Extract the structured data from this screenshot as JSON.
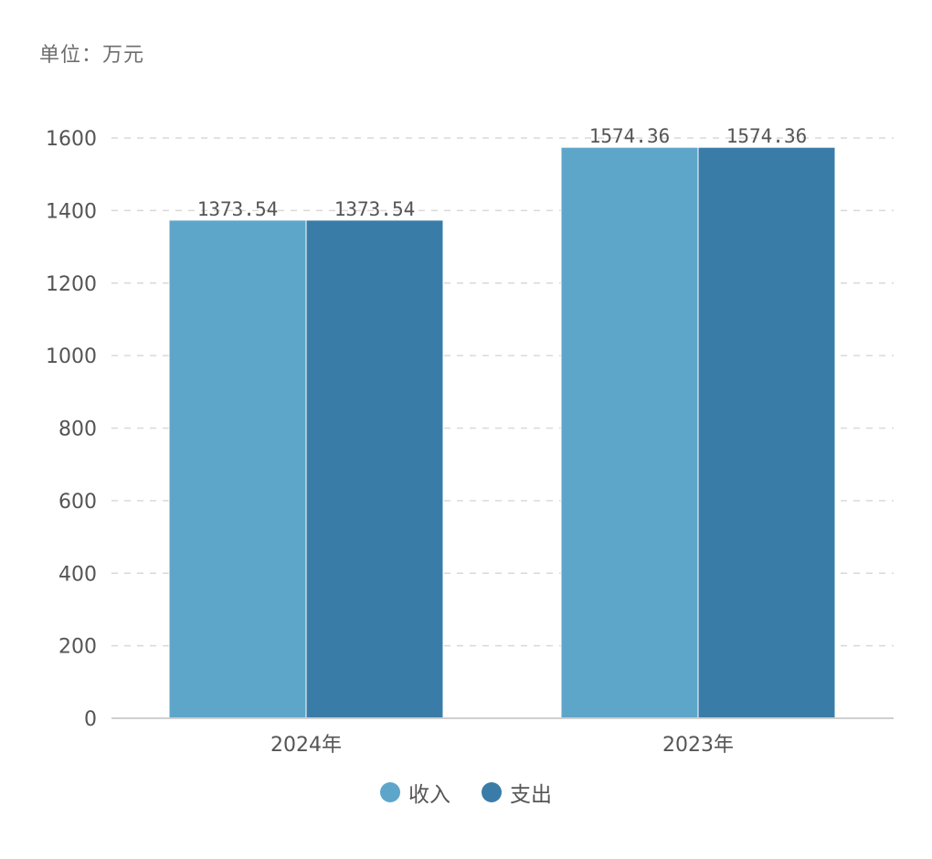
{
  "chart_data": {
    "type": "bar",
    "unit_label": "单位：万元",
    "categories": [
      "2024年",
      "2023年"
    ],
    "series": [
      {
        "name": "收入",
        "values": [
          1373.54,
          1574.36
        ],
        "labels": [
          "1373.54",
          "1574.36"
        ],
        "color": "#5ea6c9"
      },
      {
        "name": "支出",
        "values": [
          1373.54,
          1574.36
        ],
        "labels": [
          "1373.54",
          "1574.36"
        ],
        "color": "#3a7ca8"
      }
    ],
    "ylim": [
      0,
      1600
    ],
    "yticks": [
      0,
      200,
      400,
      600,
      800,
      1000,
      1200,
      1400,
      1600
    ],
    "grid": true,
    "legend_position": "bottom-center",
    "title": "",
    "xlabel": "",
    "ylabel": ""
  }
}
